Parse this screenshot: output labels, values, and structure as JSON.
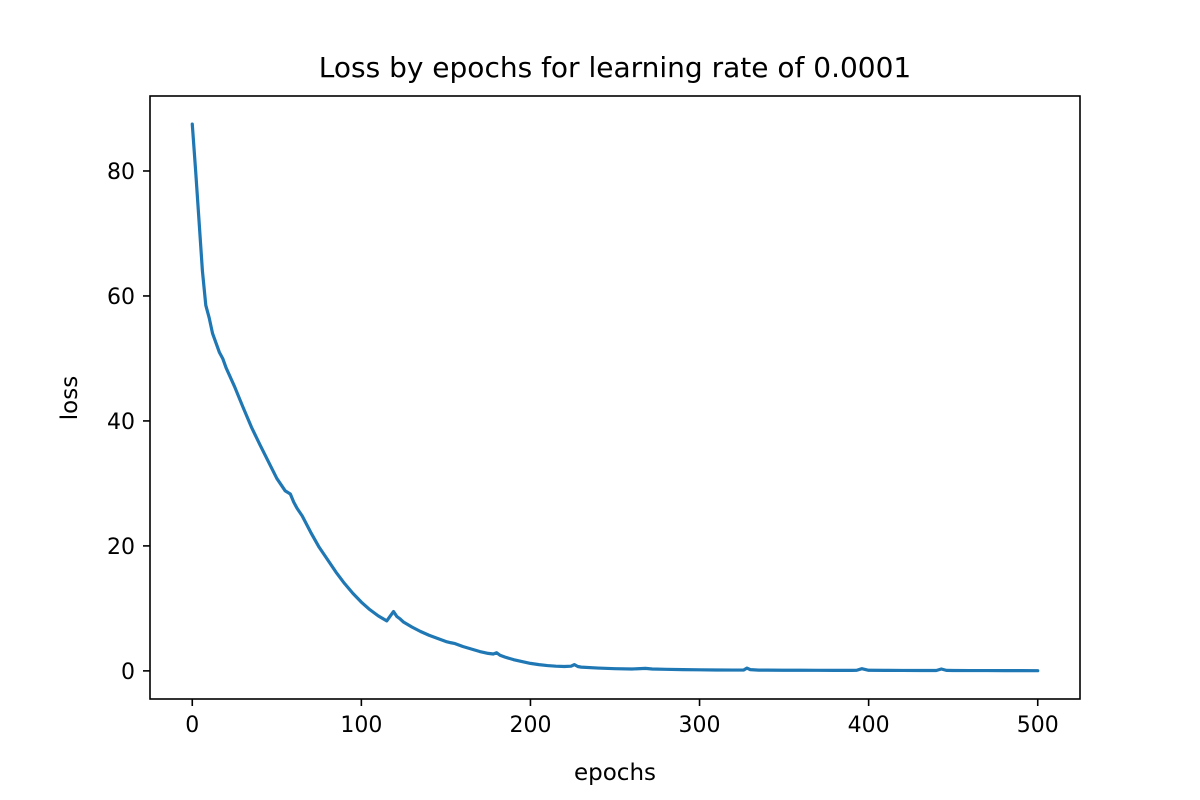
{
  "chart_data": {
    "type": "line",
    "title": "Loss by epochs for learning rate of 0.0001",
    "xlabel": "epochs",
    "ylabel": "loss",
    "xlim": [
      -25,
      525
    ],
    "ylim": [
      -4.5,
      92
    ],
    "xticks": [
      0,
      100,
      200,
      300,
      400,
      500
    ],
    "yticks": [
      0,
      20,
      40,
      60,
      80
    ],
    "grid": false,
    "legend": "none",
    "series": [
      {
        "color": "#1f77b4",
        "x": [
          0,
          2,
          4,
          6,
          8,
          10,
          12,
          14,
          16,
          18,
          20,
          25,
          30,
          35,
          40,
          45,
          50,
          55,
          58,
          60,
          62,
          65,
          70,
          75,
          80,
          85,
          90,
          95,
          100,
          105,
          110,
          115,
          119,
          121,
          123,
          125,
          130,
          135,
          140,
          145,
          150,
          153,
          155,
          157,
          160,
          165,
          170,
          175,
          178,
          180,
          182,
          185,
          190,
          195,
          200,
          205,
          210,
          215,
          220,
          224,
          226,
          228,
          230,
          240,
          250,
          260,
          268,
          272,
          280,
          290,
          300,
          310,
          320,
          326,
          328,
          330,
          335,
          340,
          350,
          360,
          370,
          380,
          390,
          393,
          396,
          400,
          410,
          420,
          430,
          440,
          443,
          446,
          450,
          460,
          470,
          480,
          490,
          500
        ],
        "y": [
          87.5,
          80,
          72,
          64,
          58.5,
          56.5,
          54,
          52.5,
          51,
          50,
          48.5,
          45.5,
          42.2,
          39,
          36.2,
          33.5,
          30.8,
          28.8,
          28.3,
          27,
          26,
          24.8,
          22.2,
          19.8,
          17.8,
          15.8,
          14,
          12.4,
          11,
          9.8,
          8.8,
          8,
          9.5,
          8.7,
          8.3,
          7.8,
          7,
          6.3,
          5.7,
          5.2,
          4.7,
          4.5,
          4.4,
          4.2,
          3.9,
          3.5,
          3.1,
          2.8,
          2.7,
          2.9,
          2.5,
          2.2,
          1.8,
          1.5,
          1.2,
          1.0,
          0.85,
          0.75,
          0.7,
          0.75,
          1.0,
          0.7,
          0.6,
          0.45,
          0.35,
          0.3,
          0.4,
          0.3,
          0.25,
          0.2,
          0.17,
          0.14,
          0.13,
          0.13,
          0.45,
          0.2,
          0.12,
          0.12,
          0.1,
          0.1,
          0.09,
          0.08,
          0.08,
          0.1,
          0.35,
          0.1,
          0.08,
          0.07,
          0.06,
          0.06,
          0.3,
          0.08,
          0.06,
          0.05,
          0.05,
          0.04,
          0.04,
          0.03
        ]
      }
    ]
  }
}
